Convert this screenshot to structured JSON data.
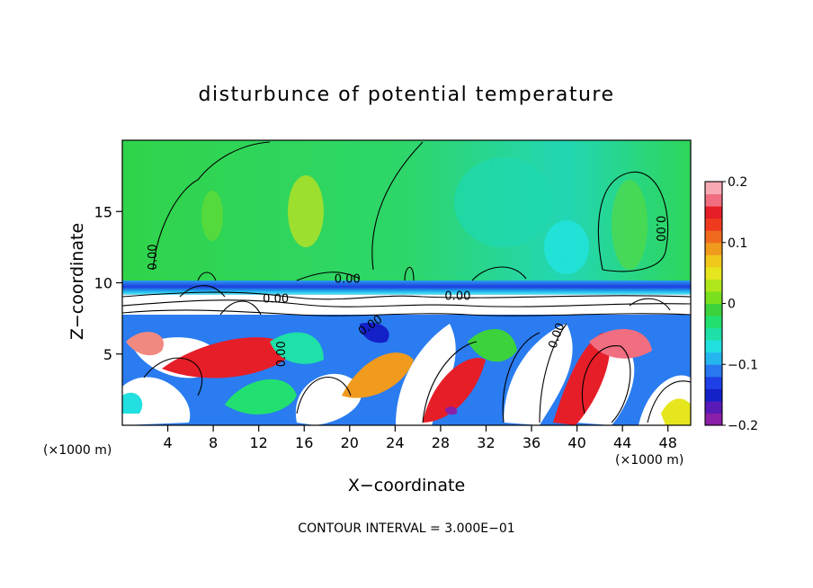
{
  "chart_data": {
    "type": "heatmap",
    "title": "disturbunce of potential temperature",
    "xlabel": "X−coordinate",
    "ylabel": "Z−coordinate",
    "x_unit_left": "(×1000 m)",
    "x_unit_right": "(×1000 m)",
    "xlim": [
      0,
      50
    ],
    "ylim": [
      0,
      20
    ],
    "x_ticks": [
      4,
      8,
      12,
      16,
      20,
      24,
      28,
      32,
      36,
      40,
      44,
      48
    ],
    "y_ticks": [
      5,
      10,
      15
    ],
    "colorbar": {
      "range": [
        -0.2,
        0.2
      ],
      "ticks": [
        {
          "value": 0.2,
          "label": "0.2"
        },
        {
          "value": 0.1,
          "label": "0.1"
        },
        {
          "value": 0.0,
          "label": "0"
        },
        {
          "value": -0.1,
          "label": "−0.1"
        },
        {
          "value": -0.2,
          "label": "−0.2"
        }
      ],
      "colors": [
        "#8a1fa8",
        "#5a1ab8",
        "#1420c8",
        "#1e40e6",
        "#2a78f0",
        "#25b6f0",
        "#22e0e0",
        "#1ee0a8",
        "#22e070",
        "#3cd23c",
        "#7ae01e",
        "#b0e61c",
        "#e6e61e",
        "#f0c81c",
        "#f09a1e",
        "#f06a1e",
        "#f03a1e",
        "#e61e28",
        "#f06e80",
        "#f8aab4"
      ]
    },
    "contour_labels": [
      {
        "x": 19.8,
        "z": 10.0,
        "text": "0.00",
        "rotate": 0
      },
      {
        "x": 3.0,
        "z": 11.8,
        "text": "0.00",
        "rotate": -90
      },
      {
        "x": 47.0,
        "z": 13.8,
        "text": "0.00",
        "rotate": 90
      },
      {
        "x": 14.3,
        "z": 5.0,
        "text": "0.00",
        "rotate": -90
      },
      {
        "x": 22.0,
        "z": 6.8,
        "text": "0.00",
        "rotate": -35
      },
      {
        "x": 13.5,
        "z": 8.6,
        "text": "0.00",
        "rotate": 0
      },
      {
        "x": 29.5,
        "z": 8.8,
        "text": "0.00",
        "rotate": 0
      },
      {
        "x": 38.5,
        "z": 6.2,
        "text": "0.00",
        "rotate": -70
      }
    ],
    "footer": "CONTOUR INTERVAL = 3.000E−01"
  }
}
